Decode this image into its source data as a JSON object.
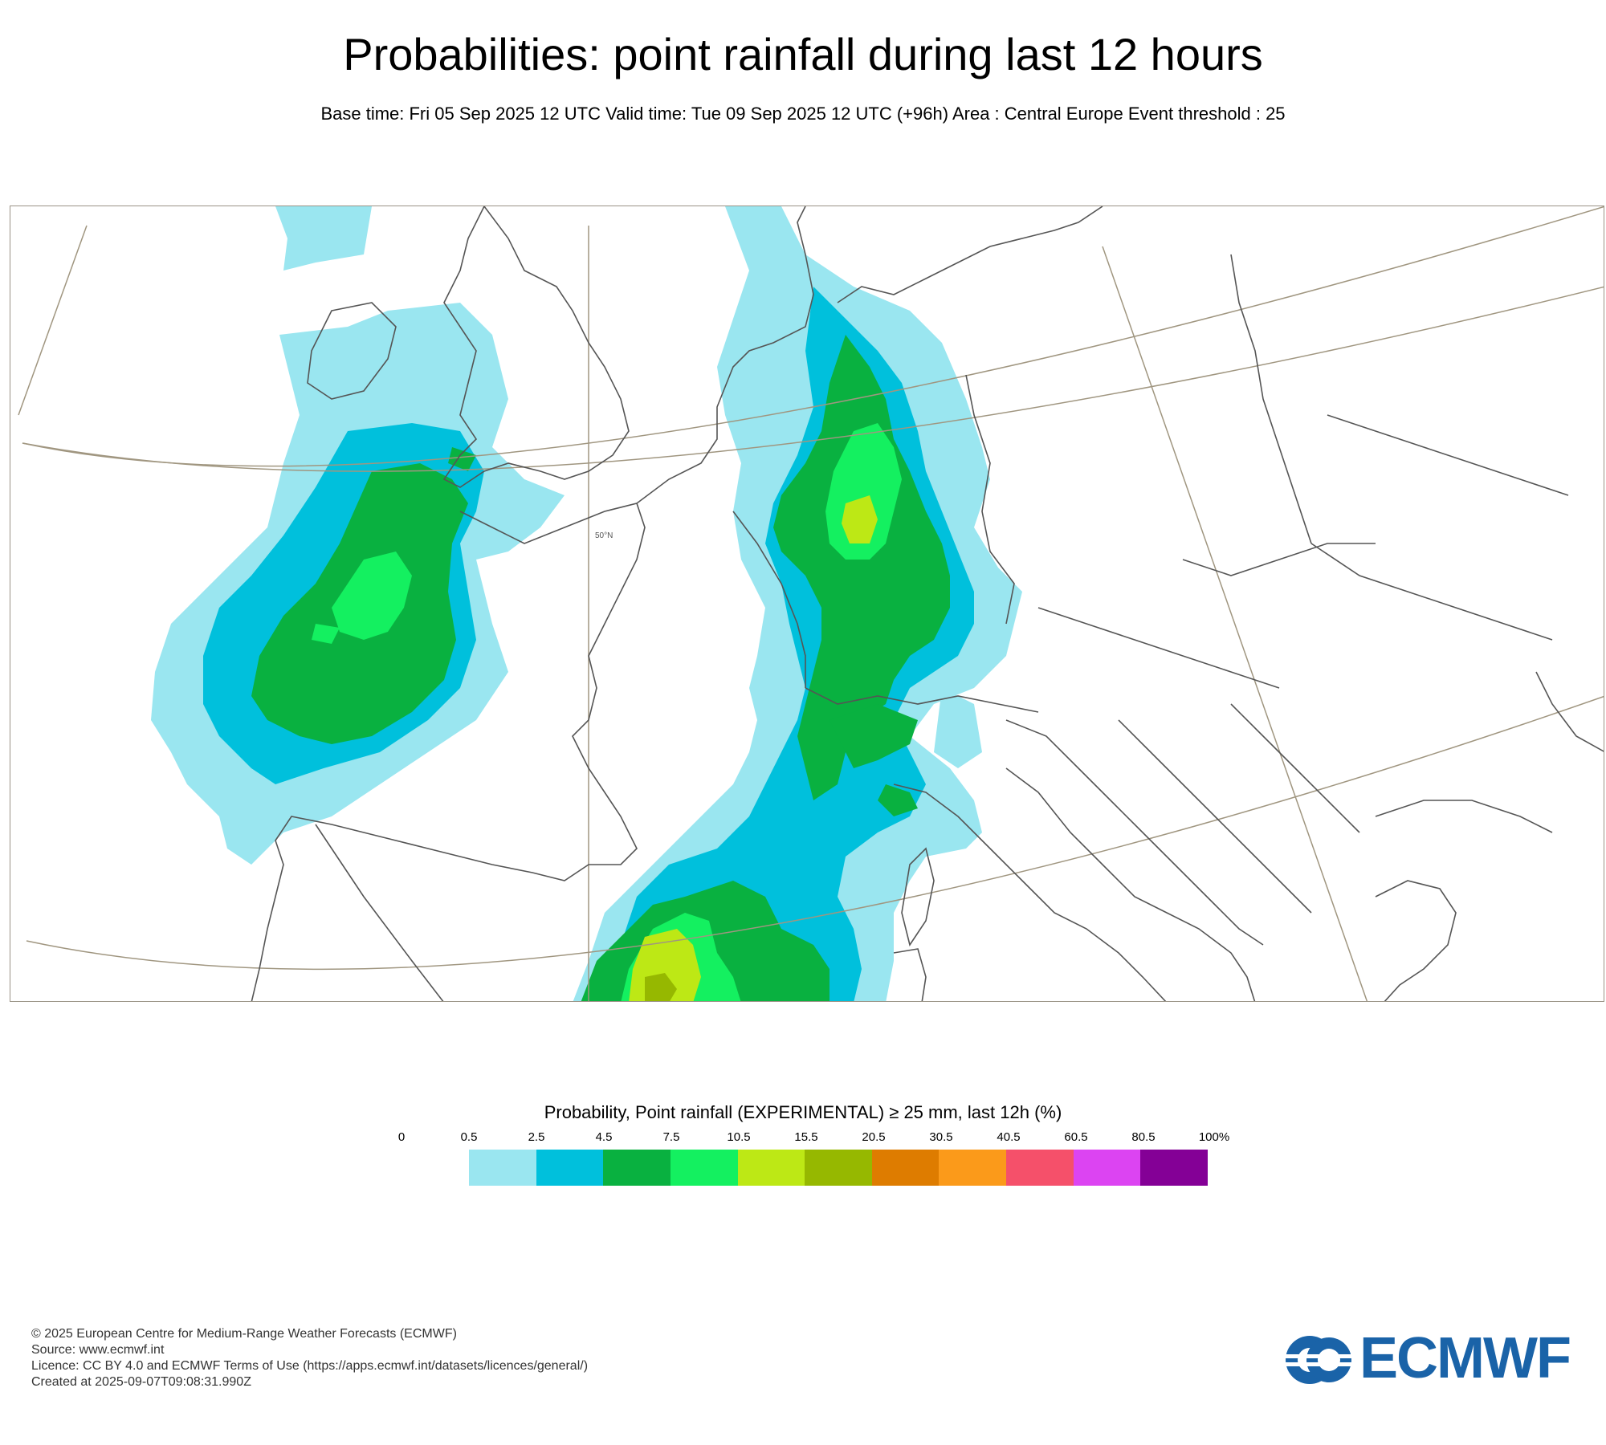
{
  "title": "Probabilities: point rainfall during last 12 hours",
  "subtitle": "Base time: Fri 05 Sep 2025 12 UTC Valid time: Tue 09 Sep 2025 12 UTC (+96h) Area : Central Europe Event threshold : 25",
  "map": {
    "latitude_label": "50°N",
    "colors": {
      "land_outline": "#555555",
      "graticule": "#a09680"
    }
  },
  "legend": {
    "title": "Probability, Point rainfall (EXPERIMENTAL) ≥ 25 mm, last 12h (%)",
    "ticks": [
      "0",
      "0.5",
      "2.5",
      "4.5",
      "7.5",
      "10.5",
      "15.5",
      "20.5",
      "30.5",
      "40.5",
      "60.5",
      "80.5",
      "100%"
    ],
    "colors": [
      "#9ae6f0",
      "#00c0dc",
      "#09b140",
      "#14f060",
      "#bde815",
      "#96b800",
      "#de7c00",
      "#fb9a1a",
      "#f5506a",
      "#dc44f2",
      "#840096"
    ]
  },
  "footer": {
    "line1": "© 2025 European Centre for Medium-Range Weather Forecasts (ECMWF)",
    "line2": "Source: www.ecmwf.int",
    "line3": "Licence: CC BY 4.0 and ECMWF Terms of Use (https://apps.ecmwf.int/datasets/licences/general/)",
    "line4": "Created at 2025-09-07T09:08:31.990Z"
  },
  "logo": {
    "text": "ECMWF",
    "color": "#1a63a8"
  }
}
